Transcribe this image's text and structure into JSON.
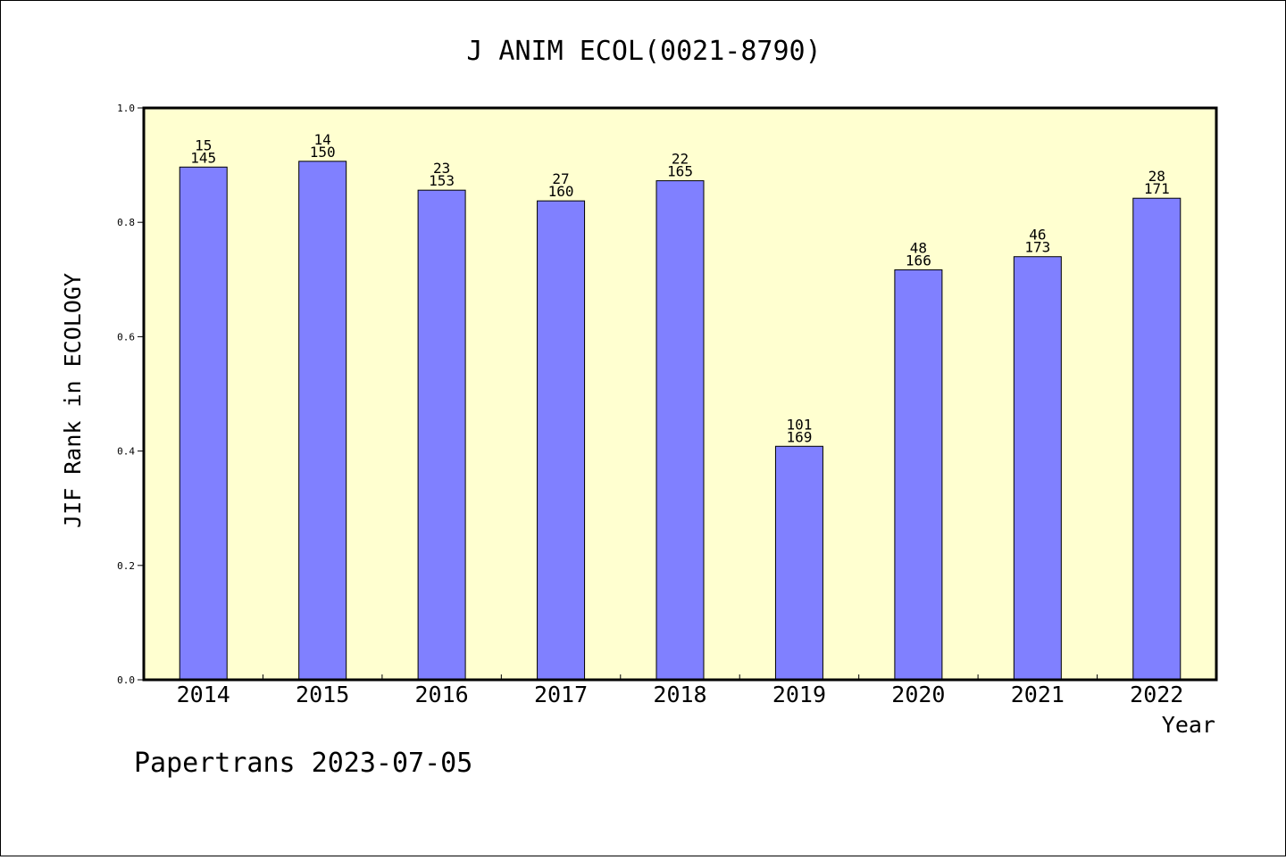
{
  "chart_data": {
    "type": "bar",
    "title": "J ANIM ECOL(0021-8790)",
    "xlabel": "Year",
    "ylabel": "JIF Rank in ECOLOGY",
    "ylim": [
      0,
      1.0
    ],
    "y_ticks": [
      "0.0",
      "0.2",
      "0.4",
      "0.6",
      "0.8",
      "1.0"
    ],
    "categories": [
      "2014",
      "2015",
      "2016",
      "2017",
      "2018",
      "2019",
      "2020",
      "2021",
      "2022"
    ],
    "values": [
      0.8966,
      0.9067,
      0.8562,
      0.8375,
      0.8727,
      0.4083,
      0.7169,
      0.7399,
      0.8421
    ],
    "rank": [
      "15",
      "14",
      "23",
      "27",
      "22",
      "101",
      "48",
      "46",
      "28"
    ],
    "total": [
      "145",
      "150",
      "153",
      "160",
      "165",
      "169",
      "166",
      "173",
      "171"
    ],
    "grid": false,
    "background": "#ffffd0",
    "bar_color": "#8080ff"
  },
  "footer": "Papertrans 2023-07-05"
}
